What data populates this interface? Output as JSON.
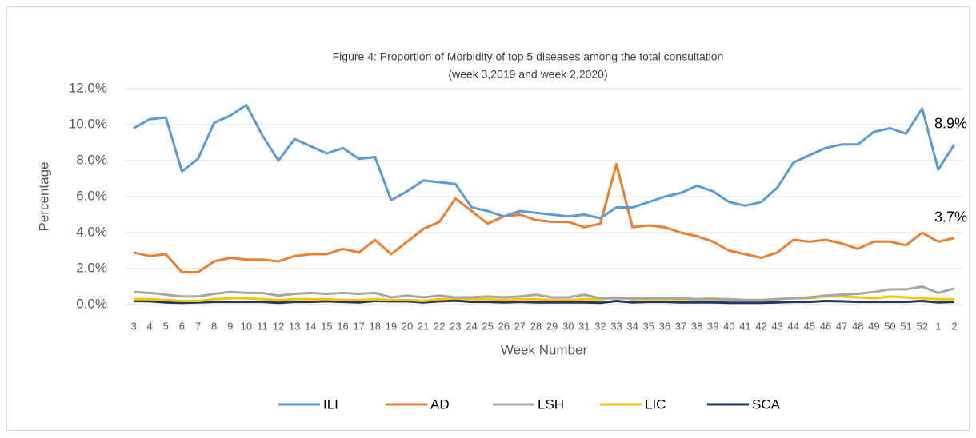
{
  "chart_data": {
    "type": "line",
    "title": "Figure 4: Proportion of Morbidity of top 5 diseases among the total consultation",
    "subtitle": "(week 3,2019 and week 2,2020)",
    "y_label": "Percentage",
    "x_label": "Week Number",
    "categories": [
      "3",
      "4",
      "5",
      "6",
      "7",
      "8",
      "9",
      "10",
      "11",
      "12",
      "13",
      "14",
      "15",
      "16",
      "17",
      "18",
      "19",
      "20",
      "21",
      "22",
      "23",
      "24",
      "25",
      "26",
      "27",
      "28",
      "29",
      "30",
      "31",
      "32",
      "33",
      "34",
      "35",
      "36",
      "37",
      "38",
      "39",
      "40",
      "41",
      "42",
      "43",
      "44",
      "45",
      "46",
      "47",
      "48",
      "49",
      "50",
      "51",
      "52",
      "1",
      "2"
    ],
    "ylim": [
      0,
      12
    ],
    "yticks": [
      {
        "value": 0,
        "label": "0.0%"
      },
      {
        "value": 2,
        "label": "2.0%"
      },
      {
        "value": 4,
        "label": "4.0%"
      },
      {
        "value": 6,
        "label": "6.0%"
      },
      {
        "value": 8,
        "label": "8.0%"
      },
      {
        "value": 10,
        "label": "10.0%"
      },
      {
        "value": 12,
        "label": "12.0%"
      }
    ],
    "grid": true,
    "legend": "bottom",
    "series": [
      {
        "name": "ILI",
        "color": "#5b9bd5",
        "values": [
          9.8,
          10.3,
          10.4,
          7.4,
          8.1,
          10.1,
          10.5,
          11.1,
          9.4,
          8.0,
          9.2,
          8.8,
          8.4,
          8.7,
          8.1,
          8.2,
          5.8,
          6.3,
          6.9,
          6.8,
          6.7,
          5.4,
          5.2,
          4.9,
          5.2,
          5.1,
          5.0,
          4.9,
          5.0,
          4.8,
          5.4,
          5.4,
          5.7,
          6.0,
          6.2,
          6.6,
          6.3,
          5.7,
          5.5,
          5.7,
          6.5,
          7.9,
          8.3,
          8.7,
          8.9,
          8.9,
          9.6,
          9.8,
          9.5,
          10.9,
          7.5,
          8.9
        ],
        "value_labels": [
          null,
          null,
          null,
          null,
          null,
          null,
          null,
          null,
          null,
          null,
          null,
          null,
          null,
          null,
          null,
          null,
          null,
          null,
          null,
          null,
          null,
          null,
          null,
          null,
          null,
          null,
          null,
          null,
          null,
          null,
          null,
          null,
          null,
          null,
          null,
          null,
          null,
          null,
          null,
          null,
          null,
          null,
          null,
          null,
          null,
          null,
          null,
          null,
          null,
          null,
          null,
          "8.9%"
        ]
      },
      {
        "name": "AD",
        "color": "#ed7d31",
        "values": [
          2.9,
          2.7,
          2.8,
          1.8,
          1.8,
          2.4,
          2.6,
          2.5,
          2.5,
          2.4,
          2.7,
          2.8,
          2.8,
          3.1,
          2.9,
          3.6,
          2.8,
          3.5,
          4.2,
          4.6,
          5.9,
          5.2,
          4.5,
          4.9,
          5.0,
          4.7,
          4.6,
          4.6,
          4.3,
          4.5,
          7.8,
          4.3,
          4.4,
          4.3,
          4.0,
          3.8,
          3.5,
          3.0,
          2.8,
          2.6,
          2.9,
          3.6,
          3.5,
          3.6,
          3.4,
          3.1,
          3.5,
          3.5,
          3.3,
          4.0,
          3.5,
          3.7
        ],
        "value_labels": [
          null,
          null,
          null,
          null,
          null,
          null,
          null,
          null,
          null,
          null,
          null,
          null,
          null,
          null,
          null,
          null,
          null,
          null,
          null,
          null,
          null,
          null,
          null,
          null,
          null,
          null,
          null,
          null,
          null,
          null,
          null,
          null,
          null,
          null,
          null,
          null,
          null,
          null,
          null,
          null,
          null,
          null,
          null,
          null,
          null,
          null,
          null,
          null,
          null,
          null,
          null,
          "3.7%"
        ]
      },
      {
        "name": "LSH",
        "color": "#a5a5a5",
        "values": [
          0.7,
          0.65,
          0.55,
          0.45,
          0.45,
          0.6,
          0.7,
          0.65,
          0.65,
          0.5,
          0.6,
          0.65,
          0.6,
          0.65,
          0.6,
          0.65,
          0.4,
          0.5,
          0.4,
          0.5,
          0.4,
          0.4,
          0.45,
          0.4,
          0.45,
          0.55,
          0.4,
          0.4,
          0.55,
          0.35,
          0.35,
          0.35,
          0.35,
          0.35,
          0.35,
          0.3,
          0.3,
          0.3,
          0.25,
          0.25,
          0.3,
          0.35,
          0.4,
          0.5,
          0.55,
          0.6,
          0.7,
          0.85,
          0.85,
          1.0,
          0.65,
          0.9
        ]
      },
      {
        "name": "LIC",
        "color": "#ffc000",
        "values": [
          0.3,
          0.3,
          0.25,
          0.2,
          0.2,
          0.3,
          0.35,
          0.35,
          0.3,
          0.25,
          0.3,
          0.3,
          0.3,
          0.25,
          0.25,
          0.3,
          0.25,
          0.25,
          0.2,
          0.3,
          0.35,
          0.3,
          0.3,
          0.25,
          0.3,
          0.3,
          0.25,
          0.25,
          0.3,
          0.3,
          0.4,
          0.3,
          0.3,
          0.3,
          0.3,
          0.3,
          0.35,
          0.25,
          0.25,
          0.25,
          0.3,
          0.35,
          0.35,
          0.45,
          0.45,
          0.4,
          0.35,
          0.45,
          0.4,
          0.35,
          0.3,
          0.3
        ]
      },
      {
        "name": "SCA",
        "color": "#203864",
        "values": [
          0.2,
          0.18,
          0.12,
          0.1,
          0.12,
          0.15,
          0.15,
          0.15,
          0.15,
          0.1,
          0.15,
          0.15,
          0.18,
          0.15,
          0.12,
          0.2,
          0.18,
          0.18,
          0.12,
          0.18,
          0.22,
          0.15,
          0.15,
          0.12,
          0.15,
          0.12,
          0.12,
          0.12,
          0.12,
          0.1,
          0.2,
          0.12,
          0.15,
          0.15,
          0.12,
          0.12,
          0.12,
          0.1,
          0.1,
          0.1,
          0.12,
          0.15,
          0.15,
          0.2,
          0.18,
          0.15,
          0.15,
          0.15,
          0.15,
          0.2,
          0.12,
          0.15
        ]
      }
    ]
  }
}
